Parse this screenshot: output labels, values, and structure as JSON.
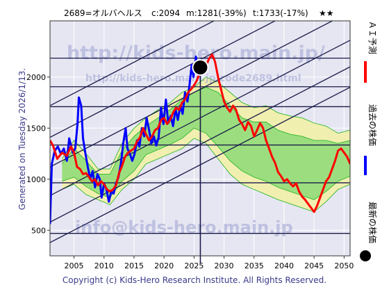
{
  "header": {
    "title": "2689=オルバヘルス",
    "current": "c:2094",
    "min_stat": "m:1281(-39%)",
    "target_stat": "t:1733(-17%)",
    "stars": "★★"
  },
  "side_text": {
    "generated": "Generated on Tuesday 2026/1/13.",
    "legend_ai": "ＡＩ予測",
    "legend_past": "過去の株価",
    "legend_latest": "最新の株価"
  },
  "watermarks": {
    "url_large": "http://kids-hero.main.jp/",
    "url_small": "http://kids-hero.main.jp/code2689.html",
    "email": "info@kids-hero.main.jp"
  },
  "footer": {
    "copyright": "Copyright (c) Kids-Hero Research Institute. All Rights Reserved."
  },
  "colors": {
    "background": "#e6e6f2",
    "grid": "#ffffff",
    "ai_line": "#ff0000",
    "past_line": "#0000ff",
    "band_yellow": "#f2f0a8",
    "band_green": "#7fd86f",
    "green_lines": "#2fb82f",
    "channel_lines": "#1a1a4a",
    "watermark": "#9aa0d0"
  },
  "chart_data": {
    "type": "line",
    "x_tick_labels": [
      "2005",
      "2010",
      "2015",
      "2020",
      "2025",
      "2030",
      "2035",
      "2040",
      "2045",
      "2050"
    ],
    "y_tick_labels": [
      "500",
      "1000",
      "1500",
      "2000"
    ],
    "xlim": [
      2001,
      2051
    ],
    "ylim": [
      250,
      2550
    ],
    "horizontal_levels": [
      470,
      965,
      1335,
      1710,
      1905,
      2185
    ],
    "current_date": 2026.05,
    "current_price": 2094,
    "series": [
      {
        "name": "過去の株価",
        "points": [
          [
            2001.0,
            560
          ],
          [
            2001.3,
            1150
          ],
          [
            2001.8,
            1280
          ],
          [
            2002.3,
            1320
          ],
          [
            2002.8,
            1250
          ],
          [
            2003.3,
            1300
          ],
          [
            2003.8,
            1180
          ],
          [
            2004.2,
            1400
          ],
          [
            2004.8,
            1260
          ],
          [
            2005.2,
            1300
          ],
          [
            2005.6,
            1550
          ],
          [
            2005.8,
            1800
          ],
          [
            2006.2,
            1720
          ],
          [
            2006.5,
            1400
          ],
          [
            2006.9,
            1250
          ],
          [
            2007.3,
            1120
          ],
          [
            2007.7,
            1000
          ],
          [
            2008.1,
            1080
          ],
          [
            2008.5,
            920
          ],
          [
            2008.9,
            1050
          ],
          [
            2009.3,
            1000
          ],
          [
            2009.6,
            820
          ],
          [
            2010.0,
            960
          ],
          [
            2010.4,
            900
          ],
          [
            2010.8,
            780
          ],
          [
            2011.2,
            880
          ],
          [
            2011.6,
            860
          ],
          [
            2012.0,
            960
          ],
          [
            2012.4,
            1020
          ],
          [
            2012.8,
            1150
          ],
          [
            2013.2,
            1350
          ],
          [
            2013.6,
            1500
          ],
          [
            2013.9,
            1300
          ],
          [
            2014.3,
            1250
          ],
          [
            2014.7,
            1180
          ],
          [
            2015.1,
            1250
          ],
          [
            2015.5,
            1380
          ],
          [
            2015.9,
            1320
          ],
          [
            2016.3,
            1500
          ],
          [
            2016.7,
            1420
          ],
          [
            2017.1,
            1600
          ],
          [
            2017.5,
            1480
          ],
          [
            2017.9,
            1350
          ],
          [
            2018.3,
            1420
          ],
          [
            2018.7,
            1330
          ],
          [
            2019.1,
            1410
          ],
          [
            2019.5,
            1700
          ],
          [
            2019.9,
            1540
          ],
          [
            2020.3,
            1780
          ],
          [
            2020.7,
            1550
          ],
          [
            2021.1,
            1620
          ],
          [
            2021.5,
            1520
          ],
          [
            2021.9,
            1690
          ],
          [
            2022.3,
            1580
          ],
          [
            2022.7,
            1720
          ],
          [
            2023.1,
            1640
          ],
          [
            2023.5,
            1850
          ],
          [
            2023.9,
            1760
          ],
          [
            2024.3,
            1950
          ],
          [
            2024.6,
            2120
          ],
          [
            2024.9,
            2000
          ],
          [
            2025.3,
            2200
          ],
          [
            2025.6,
            2080
          ],
          [
            2026.05,
            2094
          ]
        ]
      },
      {
        "name": "ＡＩ予測",
        "points": [
          [
            2001.0,
            1380
          ],
          [
            2001.5,
            1330
          ],
          [
            2002.2,
            1200
          ],
          [
            2003.0,
            1260
          ],
          [
            2003.8,
            1230
          ],
          [
            2004.5,
            1320
          ],
          [
            2005.0,
            1260
          ],
          [
            2005.5,
            1120
          ],
          [
            2006.0,
            1100
          ],
          [
            2006.5,
            1050
          ],
          [
            2007.0,
            1060
          ],
          [
            2007.5,
            1020
          ],
          [
            2008.0,
            980
          ],
          [
            2008.5,
            1000
          ],
          [
            2009.0,
            940
          ],
          [
            2009.5,
            980
          ],
          [
            2010.0,
            950
          ],
          [
            2010.5,
            900
          ],
          [
            2011.0,
            880
          ],
          [
            2011.5,
            900
          ],
          [
            2012.0,
            940
          ],
          [
            2012.5,
            1060
          ],
          [
            2013.0,
            1130
          ],
          [
            2013.5,
            1220
          ],
          [
            2014.0,
            1260
          ],
          [
            2014.5,
            1280
          ],
          [
            2015.0,
            1300
          ],
          [
            2015.5,
            1370
          ],
          [
            2016.0,
            1410
          ],
          [
            2016.5,
            1500
          ],
          [
            2017.0,
            1440
          ],
          [
            2017.5,
            1380
          ],
          [
            2018.0,
            1420
          ],
          [
            2018.5,
            1480
          ],
          [
            2019.0,
            1500
          ],
          [
            2019.5,
            1580
          ],
          [
            2020.0,
            1600
          ],
          [
            2020.5,
            1540
          ],
          [
            2021.0,
            1580
          ],
          [
            2021.5,
            1650
          ],
          [
            2022.0,
            1700
          ],
          [
            2022.5,
            1680
          ],
          [
            2023.0,
            1750
          ],
          [
            2023.5,
            1780
          ],
          [
            2024.0,
            1850
          ],
          [
            2024.5,
            1880
          ],
          [
            2025.0,
            1920
          ],
          [
            2025.5,
            1970
          ],
          [
            2026.0,
            2050
          ],
          [
            2026.5,
            2140
          ],
          [
            2027.0,
            2110
          ],
          [
            2027.5,
            2180
          ],
          [
            2028.0,
            2220
          ],
          [
            2028.5,
            2150
          ],
          [
            2029.0,
            2000
          ],
          [
            2029.5,
            1880
          ],
          [
            2030.0,
            1760
          ],
          [
            2030.5,
            1700
          ],
          [
            2031.0,
            1660
          ],
          [
            2031.5,
            1720
          ],
          [
            2032.0,
            1680
          ],
          [
            2032.5,
            1580
          ],
          [
            2033.0,
            1540
          ],
          [
            2033.5,
            1480
          ],
          [
            2034.0,
            1560
          ],
          [
            2034.5,
            1520
          ],
          [
            2035.0,
            1420
          ],
          [
            2035.5,
            1480
          ],
          [
            2036.0,
            1550
          ],
          [
            2036.5,
            1500
          ],
          [
            2037.0,
            1380
          ],
          [
            2037.5,
            1300
          ],
          [
            2038.0,
            1220
          ],
          [
            2038.5,
            1160
          ],
          [
            2039.0,
            1070
          ],
          [
            2039.5,
            1030
          ],
          [
            2040.0,
            980
          ],
          [
            2040.5,
            1000
          ],
          [
            2041.0,
            960
          ],
          [
            2041.5,
            930
          ],
          [
            2042.0,
            960
          ],
          [
            2042.5,
            880
          ],
          [
            2043.0,
            830
          ],
          [
            2043.5,
            800
          ],
          [
            2044.0,
            760
          ],
          [
            2044.5,
            720
          ],
          [
            2045.0,
            680
          ],
          [
            2045.5,
            740
          ],
          [
            2046.0,
            820
          ],
          [
            2046.5,
            900
          ],
          [
            2047.0,
            980
          ],
          [
            2047.5,
            1020
          ],
          [
            2048.0,
            1100
          ],
          [
            2048.5,
            1180
          ],
          [
            2049.0,
            1280
          ],
          [
            2049.5,
            1300
          ],
          [
            2050.0,
            1260
          ],
          [
            2050.5,
            1220
          ],
          [
            2051.0,
            1150
          ]
        ]
      }
    ],
    "band": {
      "outer_upper": [
        [
          2003,
          1200
        ],
        [
          2005,
          1380
        ],
        [
          2007,
          1250
        ],
        [
          2009,
          1100
        ],
        [
          2011,
          1100
        ],
        [
          2013,
          1350
        ],
        [
          2015,
          1500
        ],
        [
          2017,
          1600
        ],
        [
          2019,
          1680
        ],
        [
          2021,
          1750
        ],
        [
          2023,
          1850
        ],
        [
          2025,
          1900
        ],
        [
          2027,
          2000
        ],
        [
          2029,
          1950
        ],
        [
          2031,
          1850
        ],
        [
          2033,
          1750
        ],
        [
          2035,
          1700
        ],
        [
          2037,
          1720
        ],
        [
          2039,
          1650
        ],
        [
          2041,
          1620
        ],
        [
          2043,
          1600
        ],
        [
          2045,
          1550
        ],
        [
          2047,
          1520
        ],
        [
          2049,
          1450
        ],
        [
          2051,
          1480
        ]
      ],
      "outer_lower": [
        [
          2003,
          900
        ],
        [
          2005,
          950
        ],
        [
          2007,
          850
        ],
        [
          2009,
          800
        ],
        [
          2011,
          750
        ],
        [
          2013,
          900
        ],
        [
          2015,
          1000
        ],
        [
          2017,
          1150
        ],
        [
          2019,
          1200
        ],
        [
          2021,
          1250
        ],
        [
          2023,
          1300
        ],
        [
          2025,
          1400
        ],
        [
          2027,
          1350
        ],
        [
          2029,
          1200
        ],
        [
          2031,
          1050
        ],
        [
          2033,
          950
        ],
        [
          2035,
          900
        ],
        [
          2037,
          850
        ],
        [
          2039,
          800
        ],
        [
          2041,
          760
        ],
        [
          2043,
          720
        ],
        [
          2045,
          680
        ],
        [
          2047,
          780
        ],
        [
          2049,
          900
        ],
        [
          2051,
          950
        ]
      ],
      "inner_upper": [
        [
          2003,
          1150
        ],
        [
          2005,
          1300
        ],
        [
          2007,
          1180
        ],
        [
          2009,
          1050
        ],
        [
          2011,
          1050
        ],
        [
          2013,
          1280
        ],
        [
          2015,
          1420
        ],
        [
          2017,
          1520
        ],
        [
          2019,
          1600
        ],
        [
          2021,
          1680
        ],
        [
          2023,
          1780
        ],
        [
          2025,
          1850
        ],
        [
          2027,
          1900
        ],
        [
          2029,
          1850
        ],
        [
          2031,
          1720
        ],
        [
          2033,
          1600
        ],
        [
          2035,
          1560
        ],
        [
          2037,
          1560
        ],
        [
          2039,
          1480
        ],
        [
          2041,
          1440
        ],
        [
          2043,
          1420
        ],
        [
          2045,
          1380
        ],
        [
          2047,
          1380
        ],
        [
          2049,
          1350
        ],
        [
          2051,
          1380
        ]
      ],
      "inner_lower": [
        [
          2003,
          980
        ],
        [
          2005,
          1020
        ],
        [
          2007,
          930
        ],
        [
          2009,
          860
        ],
        [
          2011,
          820
        ],
        [
          2013,
          980
        ],
        [
          2015,
          1080
        ],
        [
          2017,
          1240
        ],
        [
          2019,
          1290
        ],
        [
          2021,
          1340
        ],
        [
          2023,
          1400
        ],
        [
          2025,
          1500
        ],
        [
          2027,
          1450
        ],
        [
          2029,
          1320
        ],
        [
          2031,
          1180
        ],
        [
          2033,
          1080
        ],
        [
          2035,
          1020
        ],
        [
          2037,
          980
        ],
        [
          2039,
          920
        ],
        [
          2041,
          880
        ],
        [
          2043,
          840
        ],
        [
          2045,
          800
        ],
        [
          2047,
          880
        ],
        [
          2049,
          980
        ],
        [
          2051,
          1030
        ]
      ]
    },
    "channel_lines": [
      [
        [
          2001,
          380
        ],
        [
          2051,
          1900
        ]
      ],
      [
        [
          2001,
          580
        ],
        [
          2051,
          2100
        ]
      ],
      [
        [
          2001,
          840
        ],
        [
          2051,
          2360
        ]
      ],
      [
        [
          2001,
          1120
        ],
        [
          2051,
          2640
        ]
      ],
      [
        [
          2001,
          1410
        ],
        [
          2051,
          2930
        ]
      ],
      [
        [
          2001,
          1720
        ],
        [
          2051,
          3240
        ]
      ]
    ]
  }
}
